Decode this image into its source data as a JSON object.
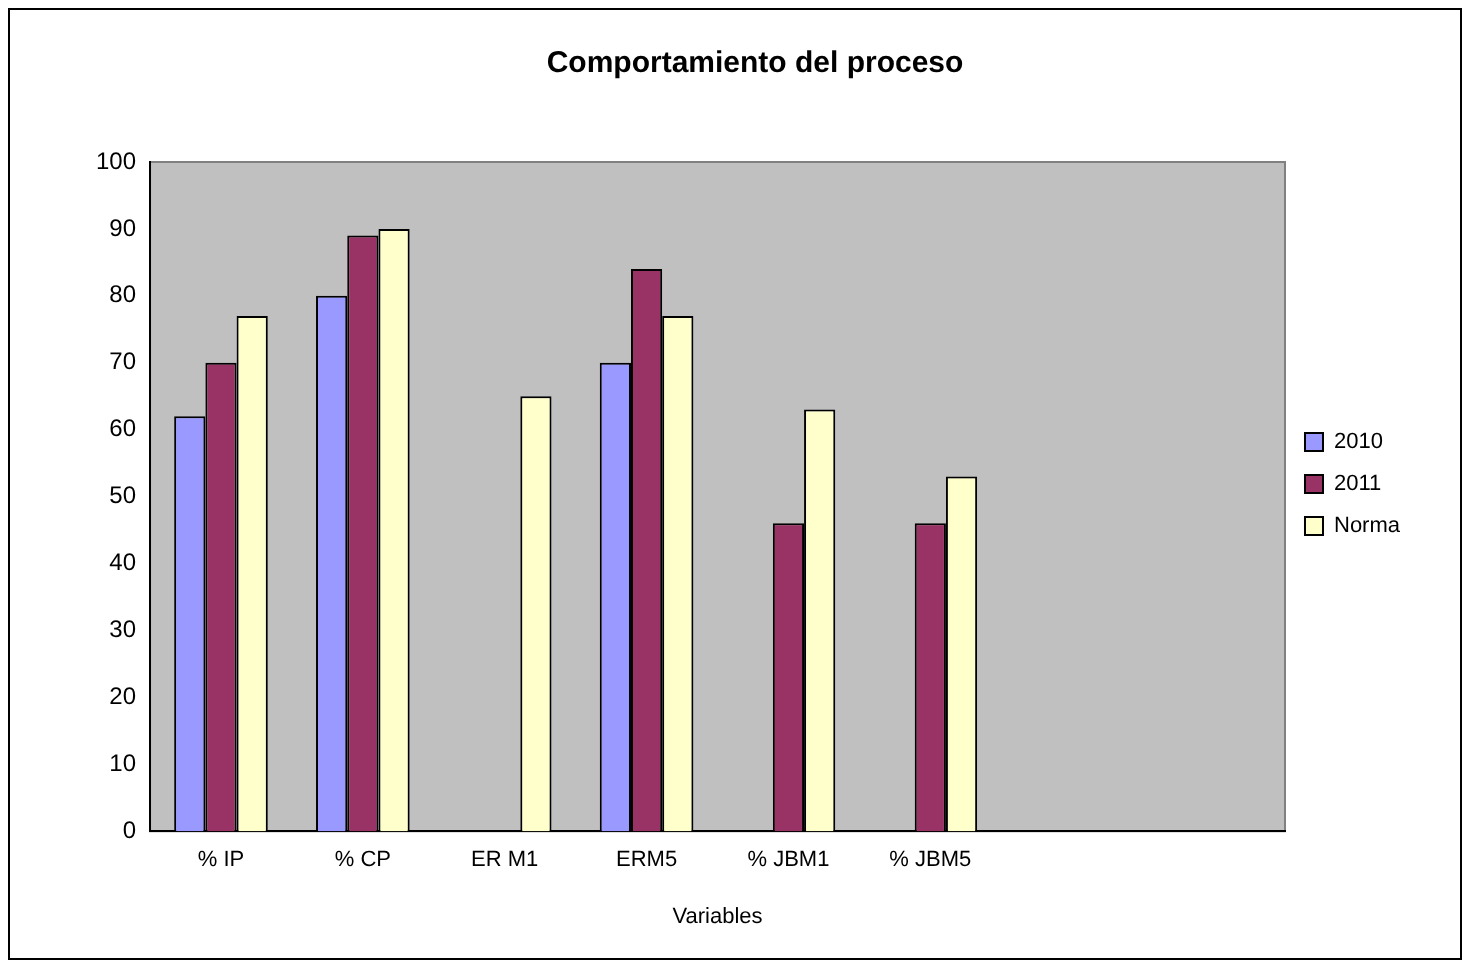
{
  "chart_data": {
    "type": "bar",
    "title": "Comportamiento del proceso",
    "xlabel": "Variables",
    "categories": [
      "% IP",
      "% CP",
      "ER M1",
      "ERM5",
      "% JBM1",
      "% JBM5",
      null,
      null
    ],
    "series": [
      {
        "name": "2010",
        "color": "#9999ff",
        "values": [
          62,
          80,
          null,
          70,
          null,
          null,
          null,
          null
        ]
      },
      {
        "name": "2011",
        "color": "#993366",
        "values": [
          70,
          89,
          null,
          84,
          46,
          46,
          null,
          null
        ]
      },
      {
        "name": "Norma",
        "color": "#ffffcc",
        "values": [
          77,
          90,
          65,
          77,
          63,
          53,
          null,
          null
        ]
      }
    ],
    "ylim": [
      0,
      100
    ],
    "yticks": [
      0,
      10,
      20,
      30,
      40,
      50,
      60,
      70,
      80,
      90,
      100
    ],
    "grid": false,
    "legend": "right"
  }
}
